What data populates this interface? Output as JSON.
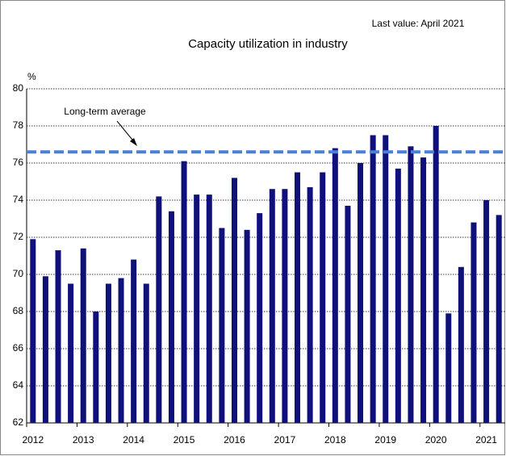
{
  "chart_data": {
    "type": "bar",
    "title": "Capacity utilization in industry",
    "annotation": "Last value: April 2021",
    "y_label": "%",
    "categories": [
      "2012",
      null,
      null,
      null,
      "2013",
      null,
      null,
      null,
      "2014",
      null,
      null,
      null,
      "2015",
      null,
      null,
      null,
      "2016",
      null,
      null,
      null,
      "2017",
      null,
      null,
      null,
      "2018",
      null,
      null,
      null,
      "2019",
      null,
      null,
      null,
      "2020",
      null,
      null,
      null,
      "2021",
      null
    ],
    "values": [
      71.9,
      69.9,
      71.3,
      69.5,
      71.4,
      68.0,
      69.5,
      69.8,
      70.8,
      69.5,
      74.2,
      73.4,
      76.1,
      74.3,
      74.3,
      72.5,
      75.2,
      72.4,
      73.3,
      74.6,
      74.6,
      75.5,
      74.7,
      75.5,
      76.8,
      73.7,
      76.0,
      77.5,
      77.5,
      75.7,
      76.9,
      76.3,
      78.0,
      67.9,
      70.4,
      72.8,
      74.0,
      73.2
    ],
    "color": "#10107a",
    "average": {
      "label": "Long-term average",
      "value": 76.6,
      "color": "#4a80d8"
    },
    "ylim": [
      62,
      80
    ],
    "yticks": [
      62,
      64,
      66,
      68,
      70,
      72,
      74,
      76,
      78,
      80
    ],
    "grid": true
  }
}
